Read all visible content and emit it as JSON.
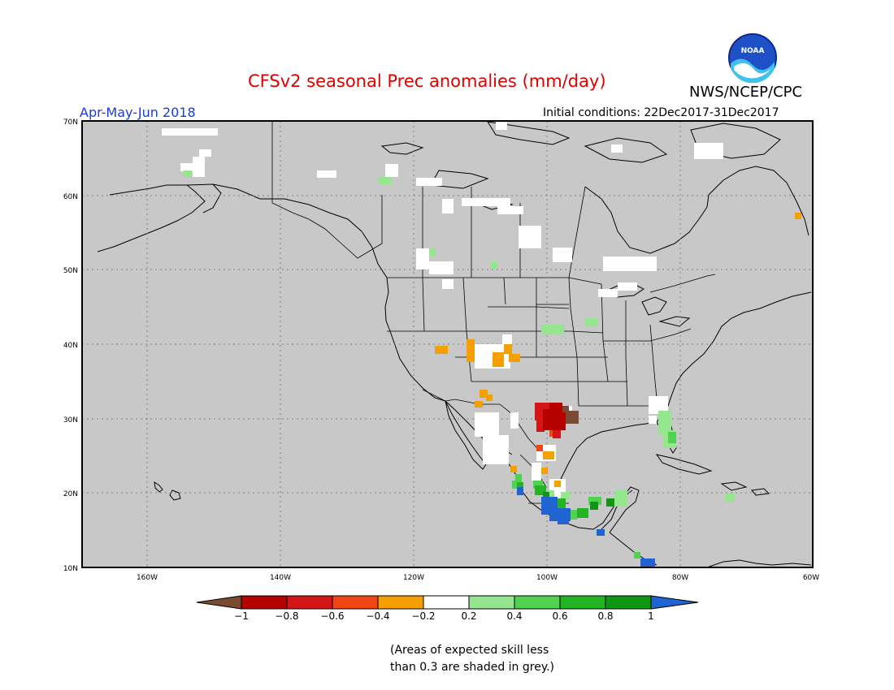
{
  "header": {
    "title": "CFSv2 seasonal Prec anomalies (mm/day)",
    "period": "Apr-May-Jun 2018",
    "organization": "NWS/NCEP/CPC",
    "initial_conditions": "Initial conditions: 22Dec2017-31Dec2017",
    "logo_text": "NOAA"
  },
  "map": {
    "lat_labels": [
      "70N",
      "60N",
      "50N",
      "40N",
      "30N",
      "20N",
      "10N"
    ],
    "lon_labels": [
      "160W",
      "140W",
      "120W",
      "100W",
      "80W",
      "60W"
    ],
    "colors": {
      "ocean_grey": "#c8c8c8",
      "land_grey": "#c8c8c8",
      "neutral": "#ffffff",
      "dark_brown": "#7a4b32",
      "dark_red": "#b50000",
      "red": "#d41515",
      "orange_red": "#f04614",
      "orange": "#f5a000",
      "light_green": "#96e690",
      "green": "#50d250",
      "mid_green": "#22b422",
      "dark_green": "#0e9614",
      "blue": "#1f64d2"
    }
  },
  "legend": {
    "ticks": [
      "−1",
      "−0.8",
      "−0.6",
      "−0.4",
      "−0.2",
      "0.2",
      "0.4",
      "0.6",
      "0.8",
      "1"
    ],
    "colors": [
      "#7a4b32",
      "#b50000",
      "#d41515",
      "#f04614",
      "#f5a000",
      "#ffffff",
      "#96e690",
      "#50d250",
      "#22b422",
      "#0e9614",
      "#1f64d2"
    ]
  },
  "footnote": {
    "line1": "(Areas of expected skill less",
    "line2": "than 0.3 are shaded in grey.)"
  }
}
